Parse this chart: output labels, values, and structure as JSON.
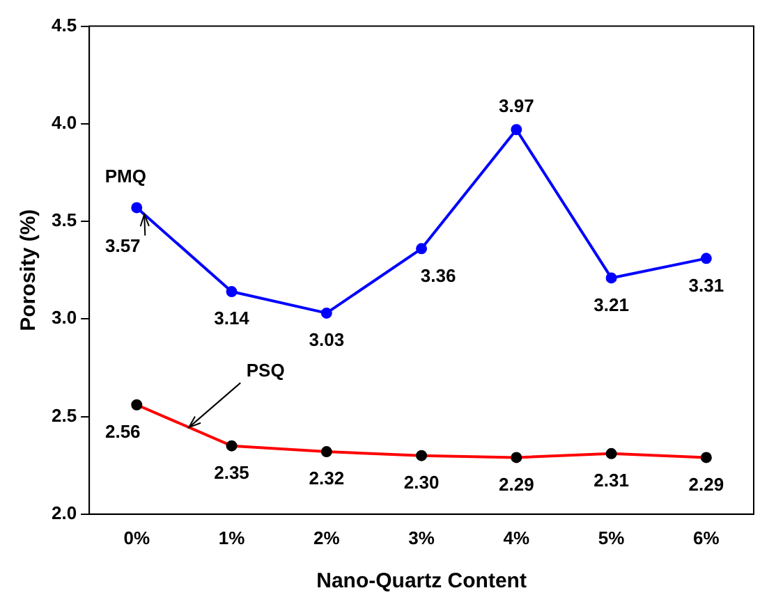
{
  "chart_data": {
    "type": "line",
    "xlabel": "Nano-Quartz Content",
    "ylabel": "Porosity (%)",
    "categories": [
      "0%",
      "1%",
      "2%",
      "3%",
      "4%",
      "5%",
      "6%"
    ],
    "series": [
      {
        "name": "PMQ",
        "color": "#0000ff",
        "values": [
          3.57,
          3.14,
          3.03,
          3.36,
          3.97,
          3.21,
          3.31
        ],
        "value_labels": [
          "3.57",
          "3.14",
          "3.03",
          "3.36",
          "3.97",
          "3.21",
          "3.31"
        ]
      },
      {
        "name": "PSQ",
        "color": "#ff0000",
        "values": [
          2.56,
          2.35,
          2.32,
          2.3,
          2.29,
          2.31,
          2.29
        ],
        "value_labels": [
          "2.56",
          "2.35",
          "2.32",
          "2.30",
          "2.29",
          "2.31",
          "2.29"
        ]
      }
    ],
    "ylim": [
      2.0,
      4.5
    ],
    "yticks": [
      {
        "value": 2.0,
        "label": "2.0"
      },
      {
        "value": 2.5,
        "label": "2.5"
      },
      {
        "value": 3.0,
        "label": "3.0"
      },
      3.5,
      {
        "value": 4.0,
        "label": "4.0"
      },
      4.5
    ],
    "grid": false,
    "legend": false,
    "marker": "circle",
    "line_style": "solid"
  }
}
